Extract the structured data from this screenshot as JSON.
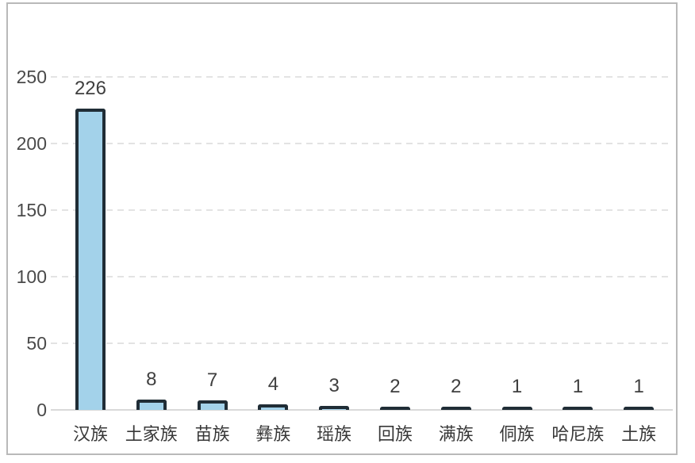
{
  "chart_data": {
    "type": "bar",
    "categories": [
      "汉族",
      "土家族",
      "苗族",
      "彝族",
      "瑶族",
      "回族",
      "满族",
      "侗族",
      "哈尼族",
      "土族"
    ],
    "values": [
      226,
      8,
      7,
      4,
      3,
      2,
      2,
      1,
      1,
      1
    ],
    "value_labels": [
      "226",
      "8",
      "7",
      "4",
      "3",
      "2",
      "2",
      "1",
      "1",
      "1"
    ],
    "title": "",
    "xlabel": "",
    "ylabel": "",
    "ylim": [
      0,
      250
    ],
    "yticks": [
      0,
      50,
      100,
      150,
      200,
      250
    ],
    "grid": "horizontal-dashed",
    "legend": "none",
    "bar_fill": "#a3d2ea",
    "bar_border": "#202d36"
  },
  "colors": {
    "card_border": "#b9b9b9",
    "gridline": "#e3e3e3",
    "axis_line": "#d9d9d9",
    "tick_text": "#4a4a4a",
    "value_text": "#3f3f3f",
    "category_text": "#383838",
    "background": "#ffffff"
  }
}
